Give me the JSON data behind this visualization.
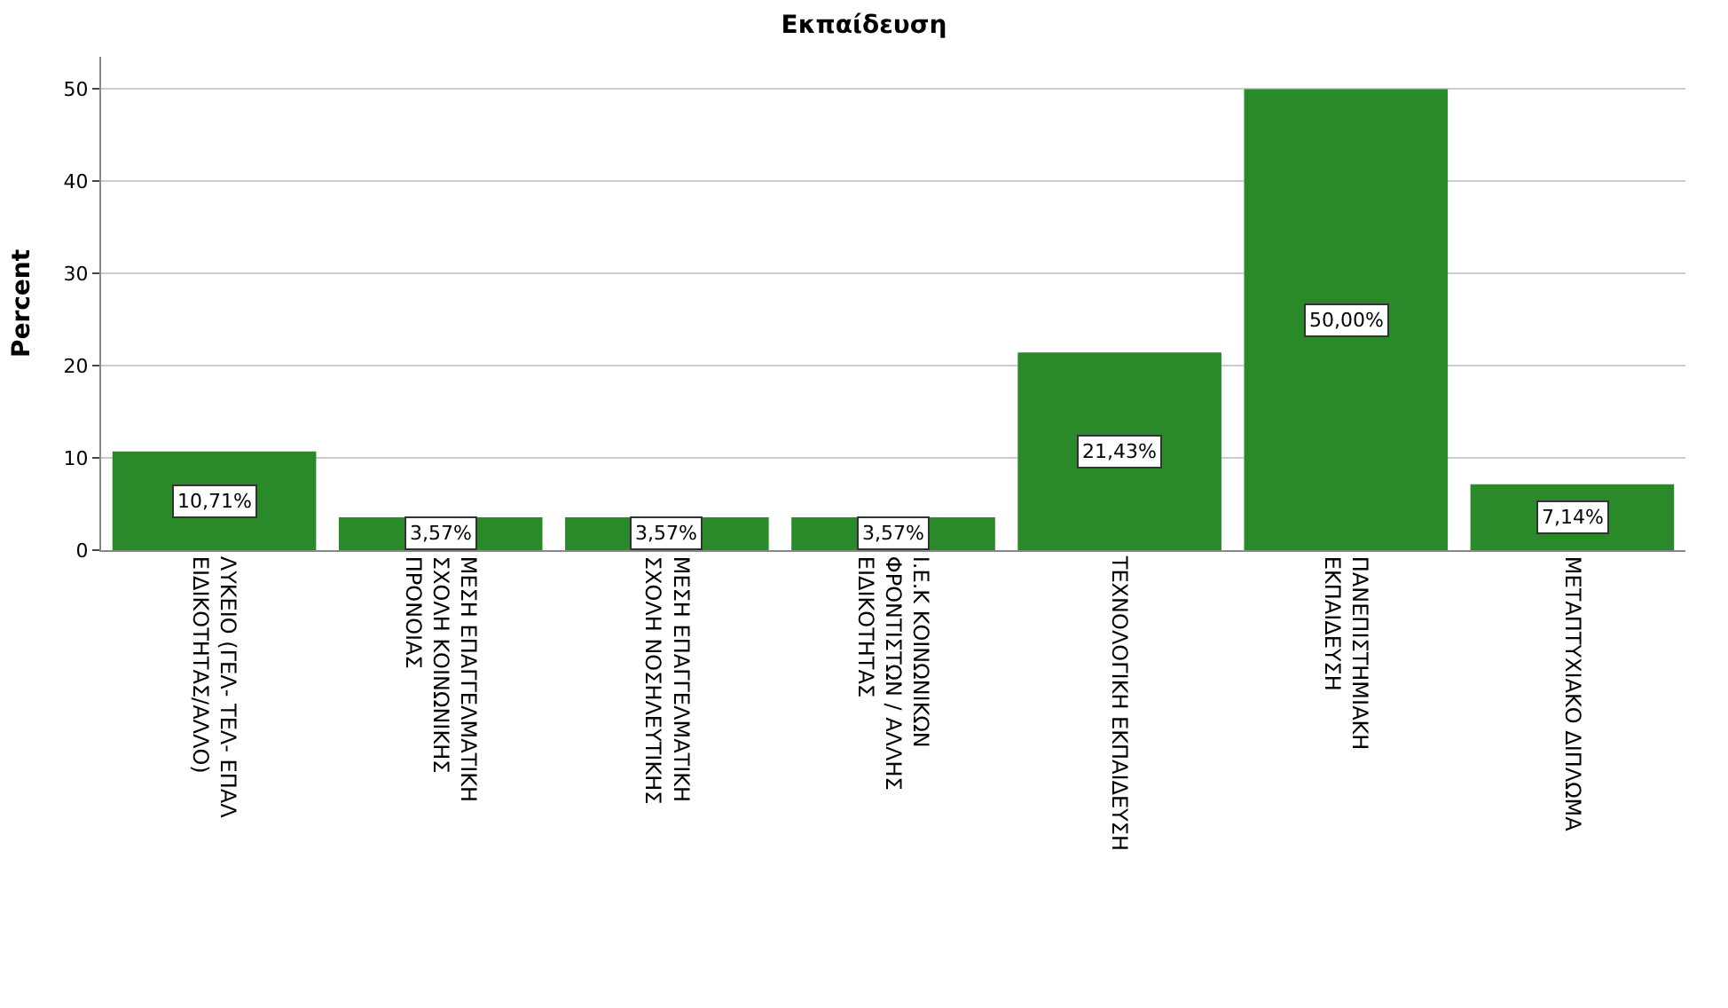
{
  "chart_data": {
    "type": "bar",
    "title": "Εκπαίδευση",
    "ylabel": "Percent",
    "categories": [
      "ΛΥΚΕΙΟ (ΓΕΛ- ΤΕΛ- ΕΠΑΛ\nΕΙΔΙΚΟΤΗΤΑΣ/ΑΛΛΟ)",
      "ΜΕΣΗ ΕΠΑΓΓΕΛΜΑΤΙΚΗ\nΣΧΟΛΗ ΚΟΙΝΩΝΙΚΗΣ\nΠΡΟΝΟΙΑΣ",
      "ΜΕΣΗ ΕΠΑΓΓΕΛΜΑΤΙΚΗ\nΣΧΟΛΗ ΝΟΣΗΛΕΥΤΙΚΗΣ",
      "Ι.Ε.Κ ΚΟΙΝΩΝΙΚΩΝ\nΦΡΟΝΤΙΣΤΩΝ / ΑΛΛΗΣ\nΕΙΔΙΚΟΤΗΤΑΣ",
      "ΤΕΧΝΟΛΟΓΙΚΗ ΕΚΠΑΙΔΕΥΣΗ",
      "ΠΑΝΕΠΙΣΤΗΜΙΑΚΗ\nΕΚΠΑΙΔΕΥΣΗ",
      "ΜΕΤΑΠΤΥΧΙΑΚΟ ΔΙΠΛΩΜΑ"
    ],
    "values": [
      10.71,
      3.57,
      3.57,
      3.57,
      21.43,
      50.0,
      7.14
    ],
    "value_labels": [
      "10,71%",
      "3,57%",
      "3,57%",
      "3,57%",
      "21,43%",
      "50,00%",
      "7,14%"
    ],
    "color": "#2a8a2a",
    "ylim": [
      0,
      53.5
    ],
    "yticks": [
      0,
      10,
      20,
      30,
      40,
      50
    ],
    "grid": "y"
  }
}
